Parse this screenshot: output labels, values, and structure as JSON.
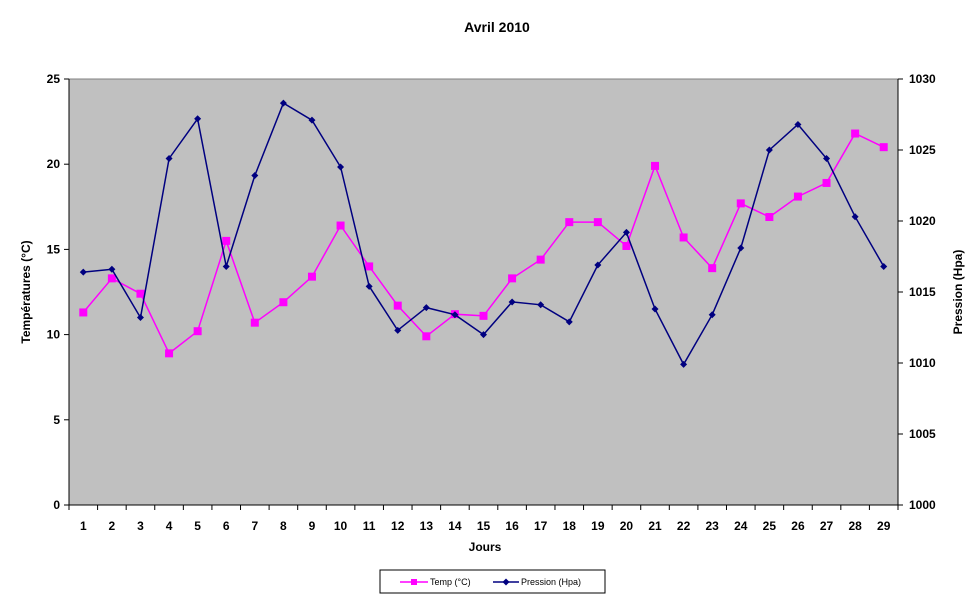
{
  "chart_data": {
    "type": "line",
    "title": "Avril 2010",
    "xlabel": "Jours",
    "ylabel": "Températures (°C)",
    "y2label": "Pression (Hpa)",
    "x": [
      1,
      2,
      3,
      4,
      5,
      6,
      7,
      8,
      9,
      10,
      11,
      12,
      13,
      14,
      15,
      16,
      17,
      18,
      19,
      20,
      21,
      22,
      23,
      24,
      25,
      26,
      27,
      28,
      29
    ],
    "ylim": [
      0,
      25
    ],
    "yticks": [
      0,
      5,
      10,
      15,
      20,
      25
    ],
    "y2lim": [
      1000,
      1030
    ],
    "y2ticks": [
      1000,
      1005,
      1010,
      1015,
      1020,
      1025,
      1030
    ],
    "grid": false,
    "legend_position": "bottom",
    "plot_background": "#c0c0c0",
    "series": [
      {
        "name": "Temp (°C)",
        "axis": "left",
        "color": "#ff00ff",
        "marker": "square",
        "values": [
          11.3,
          13.3,
          12.4,
          8.9,
          10.2,
          15.5,
          10.7,
          11.9,
          13.4,
          16.4,
          14.0,
          11.7,
          9.9,
          11.2,
          11.1,
          13.3,
          14.4,
          16.6,
          16.6,
          15.2,
          19.9,
          15.7,
          13.9,
          17.7,
          16.9,
          18.1,
          18.9,
          21.8,
          21.0
        ]
      },
      {
        "name": "Pression (Hpa)",
        "axis": "right",
        "color": "#000080",
        "marker": "diamond",
        "values": [
          1016.4,
          1016.6,
          1013.2,
          1024.4,
          1027.2,
          1016.8,
          1023.2,
          1028.3,
          1027.1,
          1023.8,
          1015.4,
          1012.3,
          1013.9,
          1013.4,
          1012.0,
          1014.3,
          1014.1,
          1012.9,
          1016.9,
          1019.2,
          1013.8,
          1009.9,
          1013.4,
          1018.1,
          1025.0,
          1026.8,
          1024.4,
          1020.3,
          1016.8
        ]
      }
    ]
  }
}
